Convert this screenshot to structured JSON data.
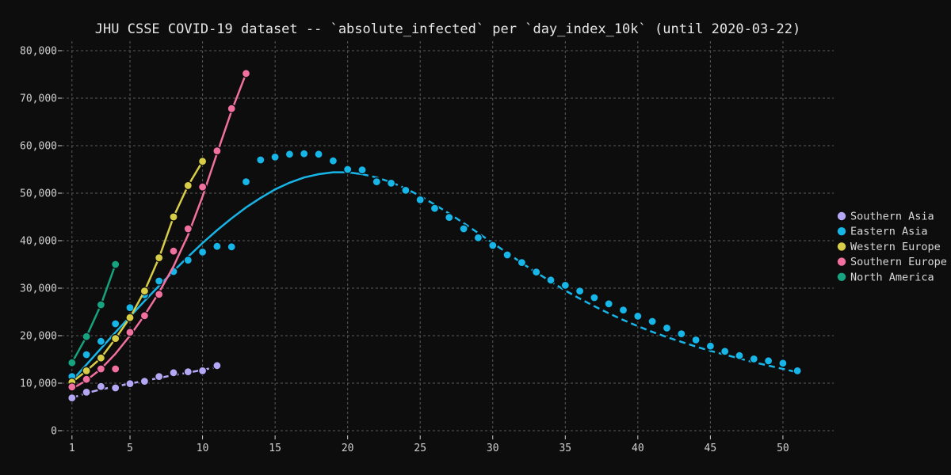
{
  "chart_data": {
    "type": "scatter",
    "title": "JHU CSSE COVID-19 dataset -- `absolute_infected` per `day_index_10k` (until 2020-03-22)",
    "xlabel": "",
    "ylabel": "",
    "xlim": [
      0.3,
      53.5
    ],
    "ylim": [
      -1000,
      82000
    ],
    "x_ticks": [
      1,
      5,
      10,
      15,
      20,
      25,
      30,
      35,
      40,
      45,
      50
    ],
    "y_ticks": [
      0,
      10000,
      20000,
      30000,
      40000,
      50000,
      60000,
      70000,
      80000
    ],
    "x_tick_labels": [
      "1",
      "5",
      "10",
      "15",
      "20",
      "25",
      "30",
      "35",
      "40",
      "45",
      "50"
    ],
    "y_tick_labels": [
      "0",
      "10,000",
      "20,000",
      "30,000",
      "40,000",
      "50,000",
      "60,000",
      "70,000",
      "80,000"
    ],
    "grid": true,
    "legend_position": "right",
    "series": [
      {
        "name": "Southern Asia",
        "color": "#b4a7f5",
        "fit_style": "dashed",
        "points": [
          [
            1,
            6900
          ],
          [
            2,
            8100
          ],
          [
            3,
            9300
          ],
          [
            4,
            9000
          ],
          [
            5,
            9900
          ],
          [
            6,
            10400
          ],
          [
            7,
            11400
          ],
          [
            8,
            12200
          ],
          [
            9,
            12400
          ],
          [
            10,
            12600
          ],
          [
            11,
            13700
          ]
        ],
        "fit": [
          [
            1,
            6900
          ],
          [
            2,
            7900
          ],
          [
            3,
            8700
          ],
          [
            4,
            9300
          ],
          [
            5,
            9900
          ],
          [
            6,
            10500
          ],
          [
            7,
            11100
          ],
          [
            8,
            11700
          ],
          [
            9,
            12200
          ],
          [
            10,
            12800
          ],
          [
            11,
            13400
          ]
        ]
      },
      {
        "name": "Eastern Asia",
        "color": "#17b6e8",
        "fit_style": "solid-then-dashed",
        "points": [
          [
            1,
            11400
          ],
          [
            2,
            16000
          ],
          [
            3,
            18800
          ],
          [
            4,
            22500
          ],
          [
            5,
            25900
          ],
          [
            6,
            28600
          ],
          [
            7,
            31500
          ],
          [
            8,
            33500
          ],
          [
            9,
            35900
          ],
          [
            10,
            37600
          ],
          [
            11,
            38800
          ],
          [
            12,
            38700
          ],
          [
            13,
            52400
          ],
          [
            14,
            57000
          ],
          [
            15,
            57600
          ],
          [
            16,
            58200
          ],
          [
            17,
            58300
          ],
          [
            18,
            58200
          ],
          [
            19,
            56800
          ],
          [
            20,
            55000
          ],
          [
            21,
            54900
          ],
          [
            22,
            52400
          ],
          [
            23,
            52100
          ],
          [
            24,
            50600
          ],
          [
            25,
            48600
          ],
          [
            26,
            46800
          ],
          [
            27,
            44900
          ],
          [
            28,
            42500
          ],
          [
            29,
            40600
          ],
          [
            30,
            39000
          ],
          [
            31,
            37000
          ],
          [
            32,
            35400
          ],
          [
            33,
            33400
          ],
          [
            34,
            31700
          ],
          [
            35,
            30600
          ],
          [
            36,
            29400
          ],
          [
            37,
            28000
          ],
          [
            38,
            26700
          ],
          [
            39,
            25400
          ],
          [
            40,
            24100
          ],
          [
            41,
            23000
          ],
          [
            42,
            21600
          ],
          [
            43,
            20400
          ],
          [
            44,
            19100
          ],
          [
            45,
            17800
          ],
          [
            46,
            16700
          ],
          [
            47,
            15800
          ],
          [
            48,
            15100
          ],
          [
            49,
            14700
          ],
          [
            50,
            14200
          ],
          [
            51,
            12600
          ]
        ],
        "fit": [
          [
            1,
            10500
          ],
          [
            2,
            13900
          ],
          [
            3,
            17300
          ],
          [
            4,
            20700
          ],
          [
            5,
            24000
          ],
          [
            6,
            27300
          ],
          [
            7,
            30500
          ],
          [
            8,
            33600
          ],
          [
            9,
            36600
          ],
          [
            10,
            39500
          ],
          [
            11,
            42200
          ],
          [
            12,
            44700
          ],
          [
            13,
            47000
          ],
          [
            14,
            49000
          ],
          [
            15,
            50800
          ],
          [
            16,
            52200
          ],
          [
            17,
            53300
          ],
          [
            18,
            54000
          ],
          [
            19,
            54400
          ],
          [
            20,
            54400
          ],
          [
            21,
            54000
          ],
          [
            22,
            53300
          ],
          [
            23,
            52300
          ],
          [
            24,
            51000
          ],
          [
            25,
            49400
          ],
          [
            26,
            47600
          ],
          [
            27,
            45700
          ],
          [
            28,
            43700
          ],
          [
            29,
            41600
          ],
          [
            30,
            39500
          ],
          [
            31,
            37400
          ],
          [
            32,
            35300
          ],
          [
            33,
            33300
          ],
          [
            34,
            31400
          ],
          [
            35,
            29500
          ],
          [
            36,
            27800
          ],
          [
            37,
            26200
          ],
          [
            38,
            24700
          ],
          [
            39,
            23300
          ],
          [
            40,
            22000
          ],
          [
            41,
            20800
          ],
          [
            42,
            19700
          ],
          [
            43,
            18700
          ],
          [
            44,
            17700
          ],
          [
            45,
            16800
          ],
          [
            46,
            16000
          ],
          [
            47,
            15200
          ],
          [
            48,
            14400
          ],
          [
            49,
            13700
          ],
          [
            50,
            13000
          ],
          [
            51,
            12300
          ]
        ]
      },
      {
        "name": "Western Europe",
        "color": "#d8cd46",
        "fit_style": "solid",
        "points": [
          [
            1,
            10200
          ],
          [
            2,
            12600
          ],
          [
            3,
            15300
          ],
          [
            4,
            19400
          ],
          [
            5,
            23800
          ],
          [
            6,
            29400
          ],
          [
            7,
            36400
          ],
          [
            8,
            45000
          ],
          [
            9,
            51600
          ],
          [
            10,
            56700
          ]
        ],
        "fit": [
          [
            1,
            10200
          ],
          [
            2,
            12600
          ],
          [
            3,
            15300
          ],
          [
            4,
            19400
          ],
          [
            5,
            23800
          ],
          [
            6,
            29400
          ],
          [
            7,
            36400
          ],
          [
            8,
            45000
          ],
          [
            9,
            51600
          ],
          [
            10,
            56700
          ]
        ]
      },
      {
        "name": "Southern Europe",
        "color": "#f2709f",
        "fit_style": "solid",
        "points": [
          [
            1,
            9200
          ],
          [
            2,
            10800
          ],
          [
            3,
            13000
          ],
          [
            4,
            13000
          ],
          [
            5,
            20700
          ],
          [
            6,
            24200
          ],
          [
            7,
            28700
          ],
          [
            8,
            37800
          ],
          [
            9,
            42500
          ],
          [
            10,
            51300
          ],
          [
            11,
            58900
          ],
          [
            12,
            67800
          ],
          [
            13,
            75200
          ]
        ],
        "fit": [
          [
            1,
            8800
          ],
          [
            2,
            10600
          ],
          [
            3,
            13000
          ],
          [
            4,
            16200
          ],
          [
            5,
            20000
          ],
          [
            6,
            24300
          ],
          [
            7,
            29100
          ],
          [
            8,
            34600
          ],
          [
            9,
            41200
          ],
          [
            10,
            49300
          ],
          [
            11,
            58400
          ],
          [
            12,
            67300
          ],
          [
            13,
            75200
          ]
        ]
      },
      {
        "name": "North America",
        "color": "#16a37f",
        "fit_style": "solid",
        "points": [
          [
            1,
            14300
          ],
          [
            2,
            19800
          ],
          [
            3,
            26500
          ],
          [
            4,
            35000
          ]
        ],
        "fit": [
          [
            1,
            14300
          ],
          [
            2,
            19800
          ],
          [
            3,
            26500
          ],
          [
            4,
            35000
          ]
        ]
      }
    ]
  }
}
